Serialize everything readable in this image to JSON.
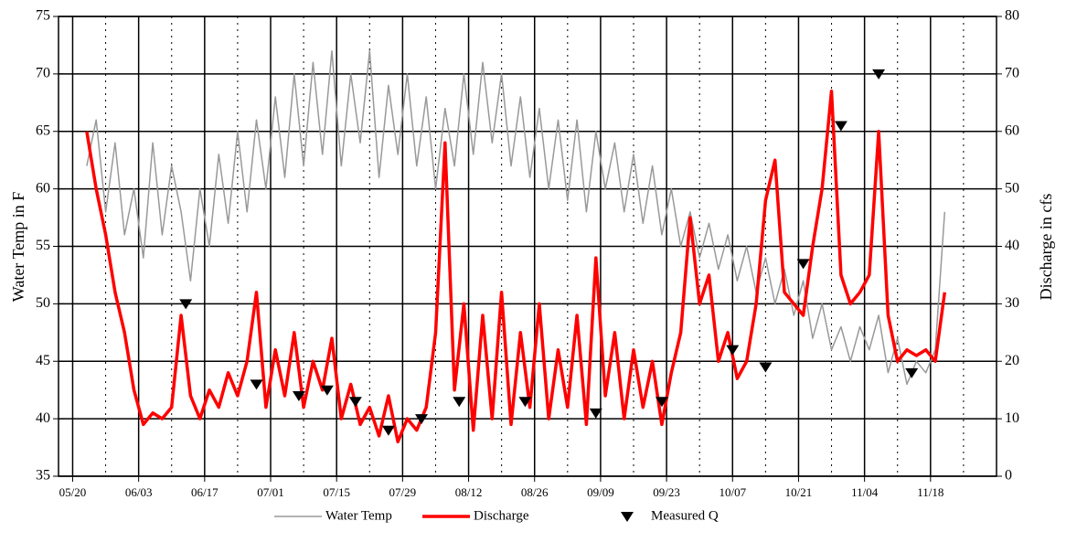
{
  "chart_data": {
    "type": "line",
    "y_label": "Water Temp in F",
    "y2_label": "Discharge in cfs",
    "xlim": [
      "05/17",
      "12/02"
    ],
    "xticks": [
      "05/20",
      "06/03",
      "06/17",
      "07/01",
      "07/15",
      "07/29",
      "08/12",
      "08/26",
      "09/09",
      "09/23",
      "10/07",
      "10/21",
      "11/04",
      "11/18"
    ],
    "xticks_minor": [
      "05/27",
      "06/10",
      "06/24",
      "07/08",
      "07/22",
      "08/05",
      "08/19",
      "09/02",
      "09/16",
      "09/30",
      "10/14",
      "10/28",
      "11/11",
      "11/25",
      "12/02"
    ],
    "ylim": [
      35,
      75
    ],
    "yticks": [
      35,
      40,
      45,
      50,
      55,
      60,
      65,
      70,
      75
    ],
    "y2lim": [
      0,
      80
    ],
    "y2ticks": [
      0,
      10,
      20,
      30,
      40,
      50,
      60,
      70,
      80
    ],
    "grid": true,
    "legend": "bottom",
    "x": [
      "05/23",
      "05/25",
      "05/27",
      "05/29",
      "05/31",
      "06/02",
      "06/04",
      "06/06",
      "06/08",
      "06/10",
      "06/12",
      "06/14",
      "06/16",
      "06/18",
      "06/20",
      "06/22",
      "06/24",
      "06/26",
      "06/28",
      "06/30",
      "07/02",
      "07/04",
      "07/06",
      "07/08",
      "07/10",
      "07/12",
      "07/14",
      "07/16",
      "07/18",
      "07/20",
      "07/22",
      "07/24",
      "07/26",
      "07/28",
      "07/30",
      "08/01",
      "08/03",
      "08/05",
      "08/07",
      "08/09",
      "08/11",
      "08/13",
      "08/15",
      "08/17",
      "08/19",
      "08/21",
      "08/23",
      "08/25",
      "08/27",
      "08/29",
      "08/31",
      "09/02",
      "09/04",
      "09/06",
      "09/08",
      "09/10",
      "09/12",
      "09/14",
      "09/16",
      "09/18",
      "09/20",
      "09/22",
      "09/24",
      "09/26",
      "09/28",
      "09/30",
      "10/02",
      "10/04",
      "10/06",
      "10/08",
      "10/10",
      "10/12",
      "10/14",
      "10/16",
      "10/18",
      "10/20",
      "10/22",
      "10/24",
      "10/26",
      "10/28",
      "10/30",
      "11/01",
      "11/03",
      "11/05",
      "11/07",
      "11/09",
      "11/11",
      "11/13",
      "11/15",
      "11/17",
      "11/19",
      "11/21"
    ],
    "series": [
      {
        "name": "Water Temp",
        "color": "#999999",
        "axis": "y",
        "width": 1.5,
        "values": [
          62,
          66,
          58,
          64,
          56,
          60,
          54,
          64,
          56,
          62,
          58,
          52,
          60,
          55,
          63,
          57,
          65,
          58,
          66,
          60,
          68,
          61,
          70,
          62,
          71,
          63,
          72,
          62,
          70,
          64,
          72,
          61,
          69,
          63,
          70,
          62,
          68,
          60,
          67,
          62,
          70,
          63,
          71,
          64,
          70,
          62,
          68,
          61,
          67,
          60,
          66,
          59,
          66,
          58,
          65,
          60,
          64,
          58,
          63,
          57,
          62,
          56,
          60,
          55,
          58,
          54,
          57,
          53,
          56,
          52,
          55,
          51,
          54,
          50,
          53,
          49,
          52,
          47,
          50,
          46,
          48,
          45,
          48,
          46,
          49,
          44,
          47,
          43,
          45,
          44,
          46,
          58
        ]
      },
      {
        "name": "Discharge",
        "color": "#ff0000",
        "axis": "y2",
        "width": 3.5,
        "values": [
          60,
          50,
          42,
          32,
          25,
          15,
          9,
          11,
          10,
          12,
          28,
          14,
          10,
          15,
          12,
          18,
          14,
          20,
          32,
          12,
          22,
          14,
          25,
          12,
          20,
          15,
          24,
          10,
          16,
          9,
          12,
          7,
          14,
          6,
          10,
          8,
          12,
          25,
          58,
          15,
          30,
          8,
          28,
          10,
          32,
          9,
          25,
          12,
          30,
          10,
          22,
          12,
          28,
          9,
          38,
          14,
          25,
          10,
          22,
          12,
          20,
          9,
          18,
          25,
          45,
          30,
          35,
          20,
          25,
          17,
          20,
          30,
          48,
          55,
          32,
          30,
          28,
          40,
          50,
          67,
          35,
          30,
          32,
          35,
          60,
          28,
          20,
          22,
          21,
          22,
          20,
          32
        ]
      },
      {
        "name": "Measured Q",
        "color": "#000000",
        "axis": "y2",
        "type": "scatter",
        "x": [
          "06/13",
          "06/28",
          "07/07",
          "07/13",
          "07/19",
          "07/26",
          "08/02",
          "08/10",
          "08/24",
          "09/08",
          "09/22",
          "10/07",
          "10/14",
          "10/22",
          "10/30",
          "11/07",
          "11/14"
        ],
        "values": [
          30,
          16,
          14,
          15,
          13,
          8,
          10,
          13,
          13,
          11,
          13,
          22,
          19,
          37,
          61,
          70,
          18
        ]
      }
    ]
  }
}
